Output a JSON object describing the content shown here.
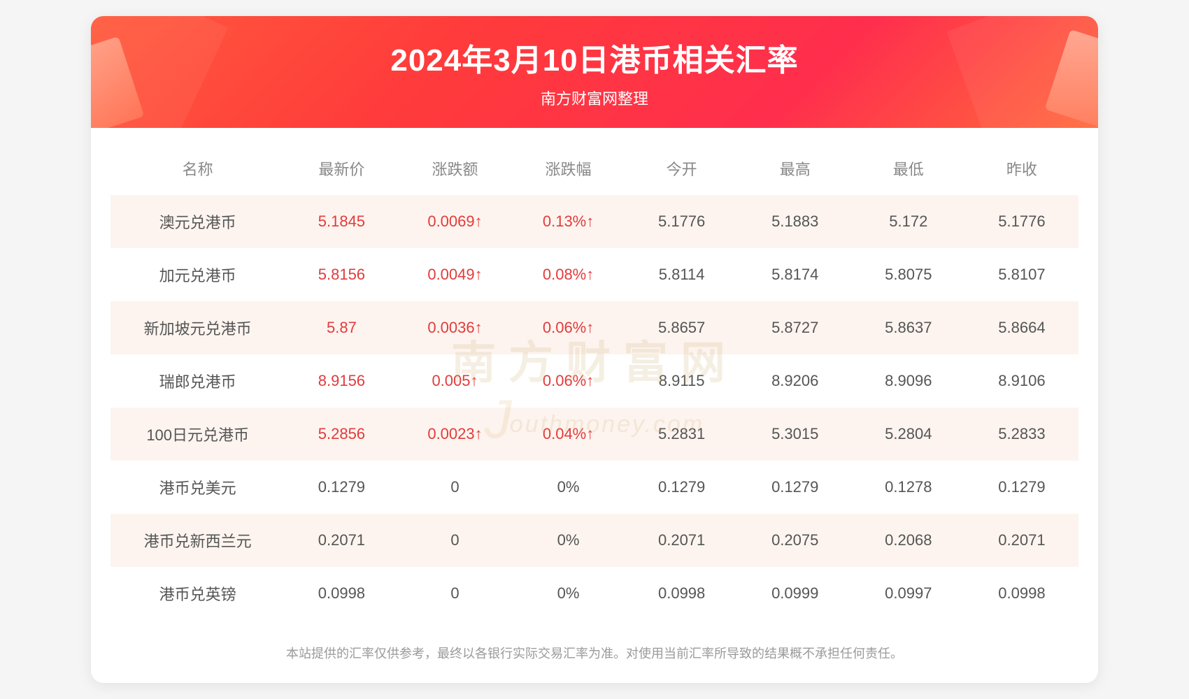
{
  "header": {
    "title": "2024年3月10日港币相关汇率",
    "subtitle": "南方财富网整理",
    "bg_gradient": [
      "#ff5a3c",
      "#ff3b3b",
      "#ff2e4d",
      "#ff6a3c"
    ],
    "title_color": "#ffffff",
    "title_fontsize": 44,
    "subtitle_fontsize": 22
  },
  "table": {
    "type": "table",
    "header_color": "#888888",
    "header_fontsize": 22,
    "cell_fontsize": 22,
    "cell_color": "#555555",
    "row_odd_bg": "#fdf4ef",
    "row_even_bg": "#ffffff",
    "up_color": "#e23b3b",
    "columns": [
      "名称",
      "最新价",
      "涨跌额",
      "涨跌幅",
      "今开",
      "最高",
      "最低",
      "昨收"
    ],
    "rows": [
      {
        "name": "澳元兑港币",
        "latest": "5.1845",
        "change": "0.0069↑",
        "pct": "0.13%↑",
        "open": "5.1776",
        "high": "5.1883",
        "low": "5.172",
        "prev": "5.1776",
        "up": true
      },
      {
        "name": "加元兑港币",
        "latest": "5.8156",
        "change": "0.0049↑",
        "pct": "0.08%↑",
        "open": "5.8114",
        "high": "5.8174",
        "low": "5.8075",
        "prev": "5.8107",
        "up": true
      },
      {
        "name": "新加坡元兑港币",
        "latest": "5.87",
        "change": "0.0036↑",
        "pct": "0.06%↑",
        "open": "5.8657",
        "high": "5.8727",
        "low": "5.8637",
        "prev": "5.8664",
        "up": true
      },
      {
        "name": "瑞郎兑港币",
        "latest": "8.9156",
        "change": "0.005↑",
        "pct": "0.06%↑",
        "open": "8.9115",
        "high": "8.9206",
        "low": "8.9096",
        "prev": "8.9106",
        "up": true
      },
      {
        "name": "100日元兑港币",
        "latest": "5.2856",
        "change": "0.0023↑",
        "pct": "0.04%↑",
        "open": "5.2831",
        "high": "5.3015",
        "low": "5.2804",
        "prev": "5.2833",
        "up": true
      },
      {
        "name": "港币兑美元",
        "latest": "0.1279",
        "change": "0",
        "pct": "0%",
        "open": "0.1279",
        "high": "0.1279",
        "low": "0.1278",
        "prev": "0.1279",
        "up": false
      },
      {
        "name": "港币兑新西兰元",
        "latest": "0.2071",
        "change": "0",
        "pct": "0%",
        "open": "0.2071",
        "high": "0.2075",
        "low": "0.2068",
        "prev": "0.2071",
        "up": false
      },
      {
        "name": "港币兑英镑",
        "latest": "0.0998",
        "change": "0",
        "pct": "0%",
        "open": "0.0998",
        "high": "0.0999",
        "low": "0.0997",
        "prev": "0.0998",
        "up": false
      }
    ]
  },
  "watermark": {
    "cn": "南方财富网",
    "en": "outhmoney.com",
    "color": "#c9a96a",
    "opacity": 0.18
  },
  "footer": {
    "text": "本站提供的汇率仅供参考，最终以各银行实际交易汇率为准。对使用当前汇率所导致的结果概不承担任何责任。",
    "color": "#9a9a9a",
    "fontsize": 18
  }
}
